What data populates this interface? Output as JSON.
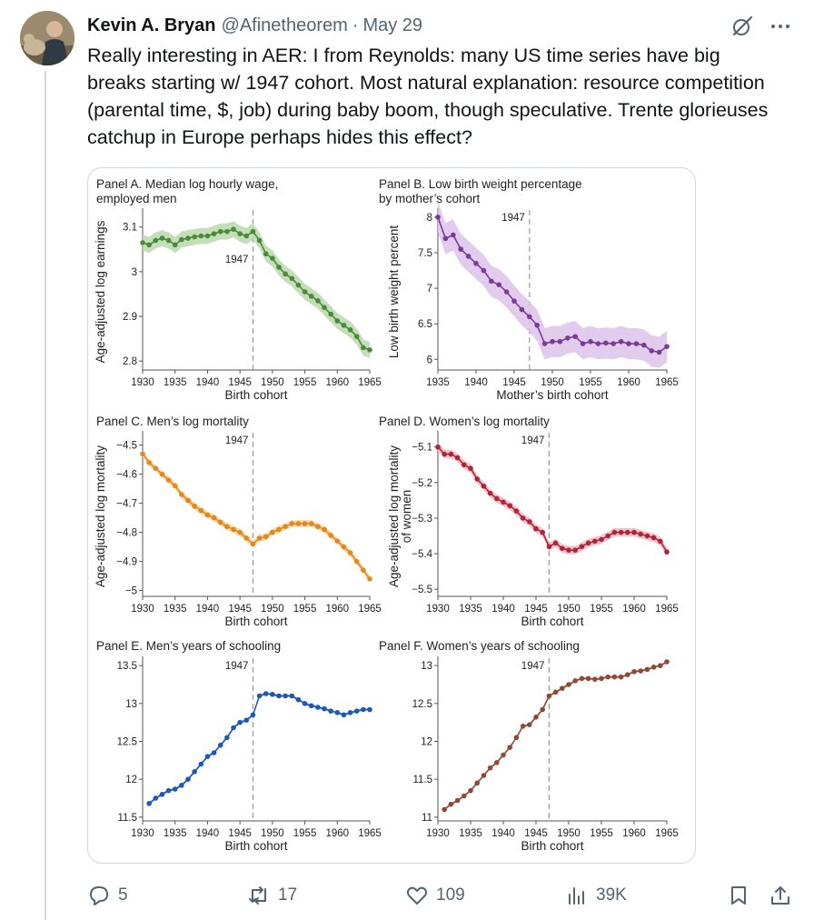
{
  "author": {
    "name": "Kevin A. Bryan",
    "handle": "@Afinetheorem",
    "date": "May 29"
  },
  "tweet": {
    "text": "Really interesting in AER: I from Reynolds: many US time series have big breaks starting w/ 1947 cohort. Most natural explanation: resource competition (parental time, $, job) during baby boom, though speculative. Trente glorieuses catchup in Europe perhaps hides this effect?"
  },
  "metrics": {
    "replies": "5",
    "retweets": "17",
    "likes": "109",
    "views": "39K"
  },
  "icons": [
    "grok-icon",
    "more-icon",
    "reply-icon",
    "retweet-icon",
    "like-icon",
    "views-icon",
    "bookmark-icon",
    "share-icon"
  ],
  "chart_data": [
    {
      "type": "line",
      "title": "Panel A. Median log hourly wage, employed men",
      "title_lines": [
        "Panel A. Median log hourly wage,",
        "employed men"
      ],
      "xlabel": "Birth cohort",
      "ylabel": "Age-adjusted log earnings",
      "color": "#4a8a3a",
      "band_color": "#b9d8ad",
      "xlim": [
        1930,
        1965
      ],
      "ylim": [
        2.78,
        3.13
      ],
      "xticks": [
        1930,
        1935,
        1940,
        1945,
        1950,
        1955,
        1960,
        1965
      ],
      "xtick_labels": [
        "1930",
        "1935",
        "1940",
        "1945",
        "1950",
        "1955",
        "1960",
        "1965"
      ],
      "yticks": [
        2.8,
        2.9,
        3.0,
        3.1
      ],
      "ytick_labels": [
        "2.8",
        "2.9",
        "3",
        "3.1"
      ],
      "break_year": 1947,
      "break_label": "1947",
      "x": [
        1930,
        1931,
        1932,
        1933,
        1934,
        1935,
        1936,
        1937,
        1938,
        1939,
        1940,
        1941,
        1942,
        1943,
        1944,
        1945,
        1946,
        1947,
        1948,
        1949,
        1950,
        1951,
        1952,
        1953,
        1954,
        1955,
        1956,
        1957,
        1958,
        1959,
        1960,
        1961,
        1962,
        1963,
        1964,
        1965
      ],
      "y": [
        3.065,
        3.06,
        3.07,
        3.075,
        3.07,
        3.06,
        3.072,
        3.075,
        3.078,
        3.08,
        3.08,
        3.085,
        3.09,
        3.09,
        3.095,
        3.085,
        3.08,
        3.09,
        3.07,
        3.04,
        3.03,
        3.01,
        2.995,
        2.985,
        2.97,
        2.955,
        2.945,
        2.935,
        2.92,
        2.905,
        2.89,
        2.88,
        2.87,
        2.855,
        2.83,
        2.825
      ],
      "band": 0.018
    },
    {
      "type": "line",
      "title": "Panel B. Low birth weight percentage by mother's cohort",
      "title_lines": [
        "Panel B. Low birth weight percentage",
        "by mother’s cohort"
      ],
      "xlabel": "Mother’s birth cohort",
      "ylabel": "Low birth weight percent",
      "color": "#7b3a9a",
      "band_color": "#dcc3ea",
      "xlim": [
        1935,
        1965
      ],
      "ylim": [
        5.85,
        8.05
      ],
      "xticks": [
        1935,
        1940,
        1945,
        1950,
        1955,
        1960,
        1965
      ],
      "xtick_labels": [
        "1935",
        "1940",
        "1945",
        "1950",
        "1955",
        "1960",
        "1965"
      ],
      "yticks": [
        6,
        6.5,
        7,
        7.5,
        8
      ],
      "ytick_labels": [
        "6",
        "6.5",
        "7",
        "7.5",
        "8"
      ],
      "break_year": 1947,
      "break_label": "1947",
      "x": [
        1935,
        1936,
        1937,
        1938,
        1939,
        1940,
        1941,
        1942,
        1943,
        1944,
        1945,
        1946,
        1947,
        1948,
        1949,
        1950,
        1951,
        1952,
        1953,
        1954,
        1955,
        1956,
        1957,
        1958,
        1959,
        1960,
        1961,
        1962,
        1963,
        1964,
        1965
      ],
      "y": [
        8.0,
        7.7,
        7.75,
        7.55,
        7.45,
        7.35,
        7.25,
        7.1,
        7.05,
        6.95,
        6.82,
        6.7,
        6.6,
        6.48,
        6.22,
        6.25,
        6.25,
        6.3,
        6.32,
        6.22,
        6.25,
        6.22,
        6.23,
        6.22,
        6.25,
        6.22,
        6.22,
        6.2,
        6.12,
        6.1,
        6.18
      ],
      "band": 0.22
    },
    {
      "type": "line",
      "title": "Panel C. Men's log mortality",
      "title_lines": [
        "Panel C. Men’s log mortality"
      ],
      "xlabel": "Birth cohort",
      "ylabel": "Age-adjusted log mortality",
      "color": "#e08a1c",
      "band_color": "#f6d1a6",
      "xlim": [
        1930,
        1965
      ],
      "ylim": [
        -5.02,
        -4.47
      ],
      "xticks": [
        1930,
        1935,
        1940,
        1945,
        1950,
        1955,
        1960,
        1965
      ],
      "xtick_labels": [
        "1930",
        "1935",
        "1940",
        "1945",
        "1950",
        "1955",
        "1960",
        "1965"
      ],
      "yticks": [
        -5,
        -4.9,
        -4.8,
        -4.7,
        -4.6,
        -4.5
      ],
      "ytick_labels": [
        "−5",
        "−4.9",
        "−4.8",
        "−4.7",
        "−4.6",
        "−4.5"
      ],
      "break_year": 1947,
      "break_label": "1947",
      "x": [
        1930,
        1931,
        1932,
        1933,
        1934,
        1935,
        1936,
        1937,
        1938,
        1939,
        1940,
        1941,
        1942,
        1943,
        1944,
        1945,
        1946,
        1947,
        1948,
        1949,
        1950,
        1951,
        1952,
        1953,
        1954,
        1955,
        1956,
        1957,
        1958,
        1959,
        1960,
        1961,
        1962,
        1963,
        1964,
        1965
      ],
      "y": [
        -4.53,
        -4.56,
        -4.58,
        -4.6,
        -4.62,
        -4.64,
        -4.67,
        -4.69,
        -4.71,
        -4.725,
        -4.74,
        -4.75,
        -4.765,
        -4.78,
        -4.79,
        -4.8,
        -4.82,
        -4.84,
        -4.82,
        -4.815,
        -4.8,
        -4.79,
        -4.78,
        -4.77,
        -4.77,
        -4.77,
        -4.77,
        -4.78,
        -4.79,
        -4.81,
        -4.83,
        -4.85,
        -4.87,
        -4.9,
        -4.93,
        -4.96
      ],
      "band": 0.012
    },
    {
      "type": "line",
      "title": "Panel D. Women's log mortality",
      "title_lines": [
        "Panel D. Women’s log mortality"
      ],
      "xlabel": "Birth cohort",
      "ylabel": "Age-adjusted log mortality of women",
      "ylabel_lines": [
        "Age-adjusted log mortality",
        "of women"
      ],
      "color": "#b0243a",
      "band_color": "#f0b9c2",
      "xlim": [
        1930,
        1965
      ],
      "ylim": [
        -5.52,
        -5.07
      ],
      "xticks": [
        1930,
        1935,
        1940,
        1945,
        1950,
        1955,
        1960,
        1965
      ],
      "xtick_labels": [
        "1930",
        "1935",
        "1940",
        "1945",
        "1950",
        "1955",
        "1960",
        "1965"
      ],
      "yticks": [
        -5.5,
        -5.4,
        -5.3,
        -5.2,
        -5.1
      ],
      "ytick_labels": [
        "−5.5",
        "−5.4",
        "−5.3",
        "−5.2",
        "−5.1"
      ],
      "break_year": 1947,
      "break_label": "1947",
      "x": [
        1930,
        1931,
        1932,
        1933,
        1934,
        1935,
        1936,
        1937,
        1938,
        1939,
        1940,
        1941,
        1942,
        1943,
        1944,
        1945,
        1946,
        1947,
        1948,
        1949,
        1950,
        1951,
        1952,
        1953,
        1954,
        1955,
        1956,
        1957,
        1958,
        1959,
        1960,
        1961,
        1962,
        1963,
        1964,
        1965
      ],
      "y": [
        -5.1,
        -5.12,
        -5.12,
        -5.13,
        -5.15,
        -5.16,
        -5.19,
        -5.21,
        -5.23,
        -5.245,
        -5.255,
        -5.265,
        -5.28,
        -5.3,
        -5.31,
        -5.33,
        -5.34,
        -5.38,
        -5.37,
        -5.385,
        -5.39,
        -5.39,
        -5.38,
        -5.37,
        -5.365,
        -5.36,
        -5.35,
        -5.34,
        -5.34,
        -5.34,
        -5.34,
        -5.345,
        -5.35,
        -5.355,
        -5.365,
        -5.395
      ],
      "band": 0.012
    },
    {
      "type": "line",
      "title": "Panel E. Men's years of schooling",
      "title_lines": [
        "Panel E. Men’s years of schooling"
      ],
      "xlabel": "Birth cohort",
      "ylabel": "",
      "color": "#1f58b0",
      "band_color": "#b7cdee",
      "xlim": [
        1930,
        1965
      ],
      "ylim": [
        11.45,
        13.55
      ],
      "xticks": [
        1930,
        1935,
        1940,
        1945,
        1950,
        1955,
        1960,
        1965
      ],
      "xtick_labels": [
        "1930",
        "1935",
        "1940",
        "1945",
        "1950",
        "1955",
        "1960",
        "1965"
      ],
      "yticks": [
        11.5,
        12,
        12.5,
        13,
        13.5
      ],
      "ytick_labels": [
        "11.5",
        "12",
        "12.5",
        "13",
        "13.5"
      ],
      "break_year": 1947,
      "break_label": "1947",
      "x": [
        1931,
        1932,
        1933,
        1934,
        1935,
        1936,
        1937,
        1938,
        1939,
        1940,
        1941,
        1942,
        1943,
        1944,
        1945,
        1946,
        1947,
        1948,
        1949,
        1950,
        1951,
        1952,
        1953,
        1954,
        1955,
        1956,
        1957,
        1958,
        1959,
        1960,
        1961,
        1962,
        1963,
        1964,
        1965
      ],
      "y": [
        11.68,
        11.75,
        11.8,
        11.85,
        11.87,
        11.92,
        12.0,
        12.1,
        12.2,
        12.3,
        12.35,
        12.45,
        12.55,
        12.68,
        12.75,
        12.78,
        12.85,
        13.1,
        13.13,
        13.12,
        13.1,
        13.1,
        13.1,
        13.05,
        13.0,
        12.97,
        12.95,
        12.93,
        12.9,
        12.88,
        12.85,
        12.88,
        12.9,
        12.92,
        12.92
      ],
      "band": 0.02
    },
    {
      "type": "line",
      "title": "Panel F. Women's years of schooling",
      "title_lines": [
        "Panel F. Women’s years of schooling"
      ],
      "xlabel": "Birth cohort",
      "ylabel": "",
      "color": "#8e4a36",
      "band_color": "#dcb8ab",
      "xlim": [
        1930,
        1965
      ],
      "ylim": [
        10.95,
        13.05
      ],
      "xticks": [
        1930,
        1935,
        1940,
        1945,
        1950,
        1955,
        1960,
        1965
      ],
      "xtick_labels": [
        "1930",
        "1935",
        "1940",
        "1945",
        "1950",
        "1955",
        "1960",
        "1965"
      ],
      "yticks": [
        11,
        11.5,
        12,
        12.5,
        13
      ],
      "ytick_labels": [
        "11",
        "11.5",
        "12",
        "12.5",
        "13"
      ],
      "break_year": 1947,
      "break_label": "1947",
      "x": [
        1931,
        1932,
        1933,
        1934,
        1935,
        1936,
        1937,
        1938,
        1939,
        1940,
        1941,
        1942,
        1943,
        1944,
        1945,
        1946,
        1947,
        1948,
        1949,
        1950,
        1951,
        1952,
        1953,
        1954,
        1955,
        1956,
        1957,
        1958,
        1959,
        1960,
        1961,
        1962,
        1963,
        1964,
        1965
      ],
      "y": [
        11.1,
        11.17,
        11.22,
        11.28,
        11.35,
        11.45,
        11.55,
        11.65,
        11.72,
        11.82,
        11.92,
        12.05,
        12.2,
        12.22,
        12.32,
        12.42,
        12.6,
        12.65,
        12.7,
        12.75,
        12.8,
        12.83,
        12.83,
        12.82,
        12.83,
        12.85,
        12.85,
        12.85,
        12.88,
        12.92,
        12.93,
        12.95,
        12.98,
        13.0,
        13.05
      ],
      "band": 0.015
    }
  ]
}
